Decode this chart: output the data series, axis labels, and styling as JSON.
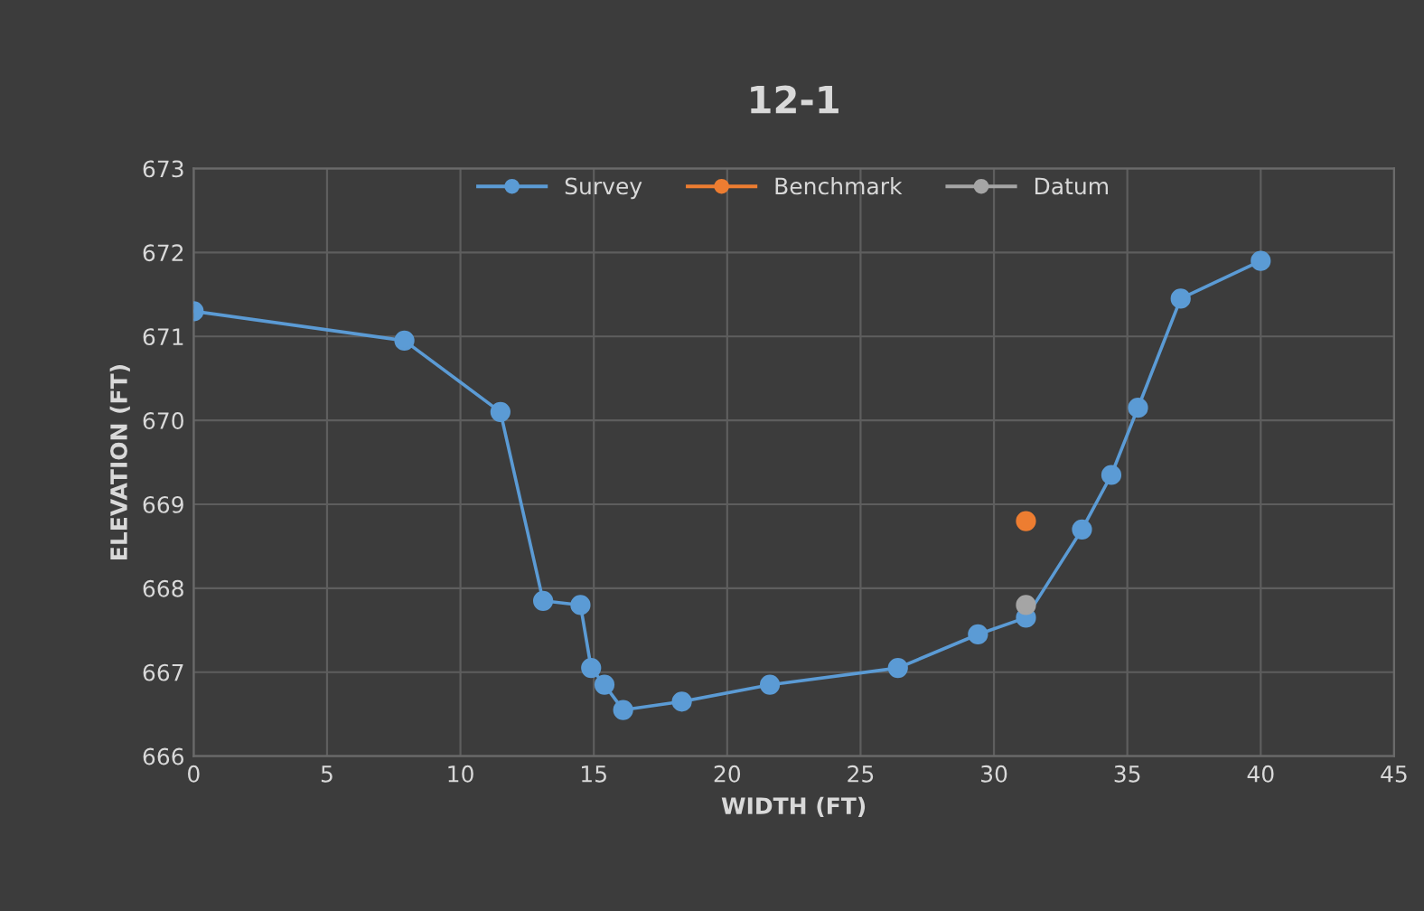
{
  "chart_data": {
    "type": "line",
    "title": "12-1",
    "xlabel": "WIDTH (FT)",
    "ylabel": "ELEVATION (FT)",
    "series": [
      {
        "name": "Survey",
        "color": "#5b9bd5",
        "x": [
          0,
          7.9,
          11.5,
          13.1,
          14.5,
          14.9,
          15.4,
          16.1,
          18.3,
          21.6,
          26.4,
          29.4,
          31.2,
          33.3,
          34.4,
          35.4,
          37.0,
          40.0
        ],
        "values": [
          671.3,
          670.95,
          670.1,
          667.85,
          667.8,
          667.05,
          666.85,
          666.55,
          666.65,
          666.85,
          667.05,
          667.45,
          667.65,
          668.7,
          669.35,
          670.15,
          671.45,
          671.9
        ]
      },
      {
        "name": "Benchmark",
        "color": "#ed7d31",
        "x": [
          31.2
        ],
        "values": [
          668.8
        ]
      },
      {
        "name": "Datum",
        "color": "#a5a5a5",
        "x": [
          31.2
        ],
        "values": [
          667.8
        ]
      }
    ],
    "xlim": [
      0,
      45
    ],
    "xticks": [
      0,
      5,
      10,
      15,
      20,
      25,
      30,
      35,
      40,
      45
    ],
    "ylim": [
      666,
      673
    ],
    "yticks": [
      666,
      667,
      668,
      669,
      670,
      671,
      672,
      673
    ],
    "grid": true,
    "legend": "top",
    "marker": "circle",
    "line_style": "solid"
  }
}
